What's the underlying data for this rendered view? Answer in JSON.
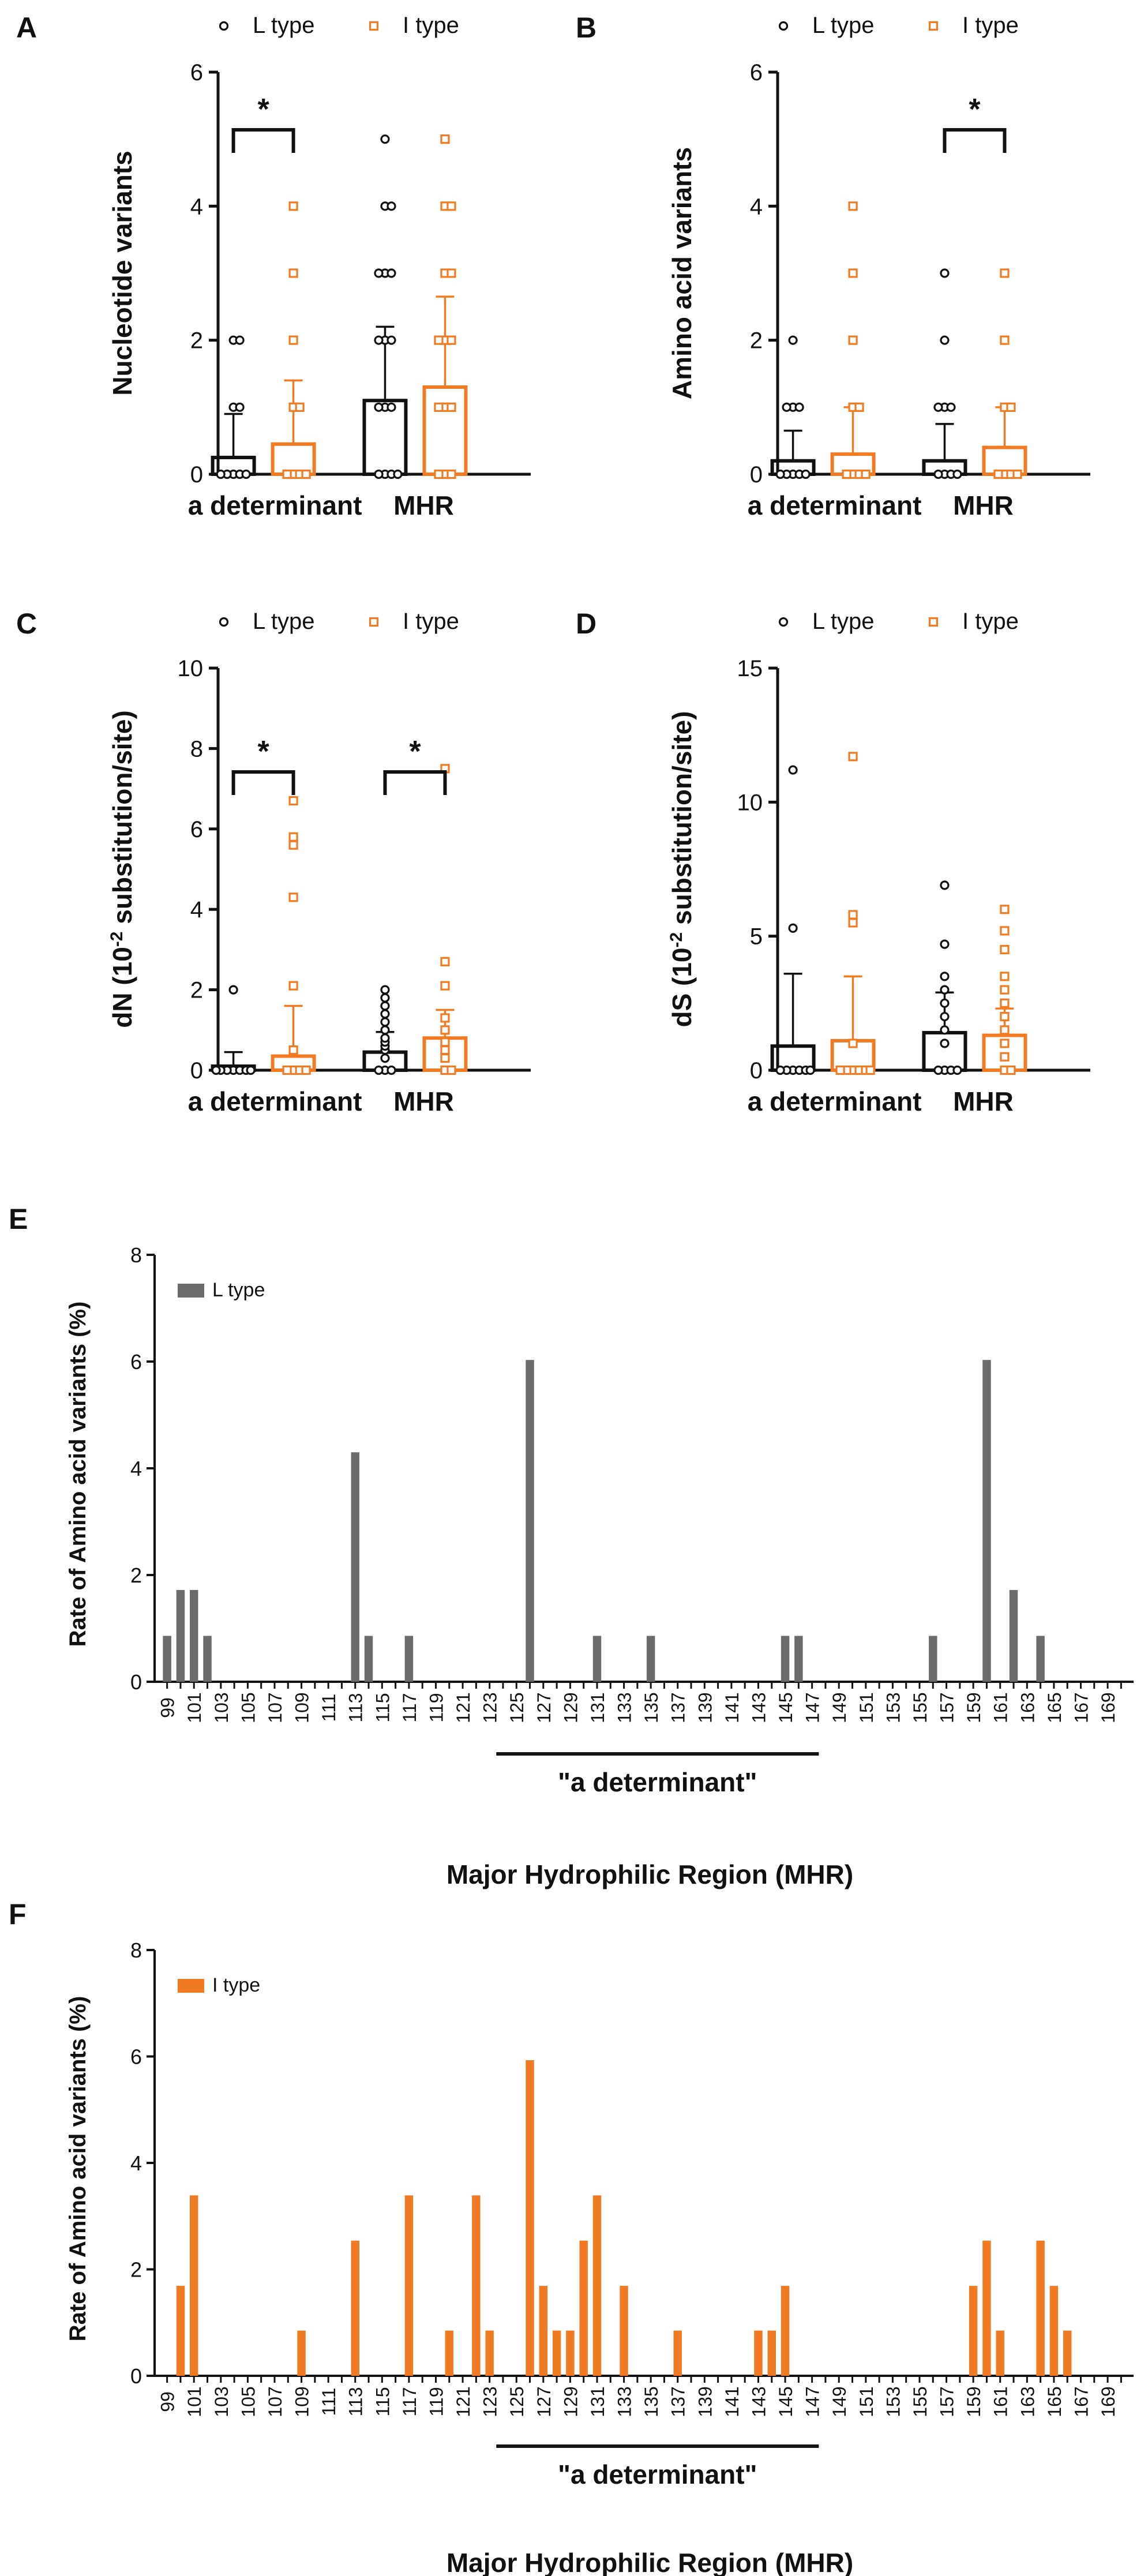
{
  "colors": {
    "l_type": "#111111",
    "i_type": "#f07b22",
    "l_type_bar_fill": "#6b6b6b",
    "axis": "#111111"
  },
  "legend": {
    "l_type": "L type",
    "i_type": "I type"
  },
  "chart_data": [
    {
      "panel": "A",
      "type": "bar",
      "ylabel": "Nucleotide variants",
      "ylim": [
        0,
        6
      ],
      "yticks": [
        0,
        2,
        4,
        6
      ],
      "categories": [
        "a determinant",
        "MHR"
      ],
      "series": [
        {
          "name": "L type",
          "means": [
            0.25,
            1.1
          ],
          "sd_upper": [
            0.9,
            2.2
          ],
          "points": [
            [
              0,
              0,
              0,
              0,
              0,
              1,
              1,
              2,
              2
            ],
            [
              0,
              0,
              0,
              0,
              1,
              1,
              1,
              2,
              2,
              2,
              3,
              3,
              3,
              4,
              4,
              5
            ]
          ]
        },
        {
          "name": "I type",
          "means": [
            0.45,
            1.3
          ],
          "sd_upper": [
            1.4,
            2.65
          ],
          "points": [
            [
              0,
              0,
              0,
              0,
              1,
              1,
              2,
              3,
              4
            ],
            [
              0,
              0,
              0,
              1,
              1,
              1,
              2,
              2,
              2,
              3,
              3,
              4,
              4,
              5
            ]
          ]
        }
      ],
      "significance": [
        {
          "category": "a determinant",
          "label": "*"
        }
      ]
    },
    {
      "panel": "B",
      "type": "bar",
      "ylabel": "Amino acid variants",
      "ylim": [
        0,
        6
      ],
      "yticks": [
        0,
        2,
        4,
        6
      ],
      "categories": [
        "a determinant",
        "MHR"
      ],
      "series": [
        {
          "name": "L type",
          "means": [
            0.2,
            0.2
          ],
          "sd_upper": [
            0.65,
            0.75
          ],
          "points": [
            [
              0,
              0,
              0,
              0,
              0,
              1,
              1,
              1,
              2
            ],
            [
              0,
              0,
              0,
              0,
              1,
              1,
              1,
              2,
              3
            ]
          ]
        },
        {
          "name": "I type",
          "means": [
            0.3,
            0.4
          ],
          "sd_upper": [
            1.0,
            1.0
          ],
          "points": [
            [
              0,
              0,
              0,
              0,
              1,
              1,
              2,
              3,
              4
            ],
            [
              0,
              0,
              0,
              0,
              1,
              1,
              2,
              3
            ]
          ]
        }
      ],
      "significance": [
        {
          "category": "MHR",
          "label": "*"
        }
      ]
    },
    {
      "panel": "C",
      "type": "bar",
      "ylabel": "dN (10-2 substitution/site)",
      "ylabel_base": "dN (10",
      "ylabel_sup": "-2",
      "ylabel_rest": " substitution/site)",
      "ylim": [
        0,
        10
      ],
      "yticks": [
        0,
        2,
        4,
        6,
        8,
        10
      ],
      "categories": [
        "a determinant",
        "MHR"
      ],
      "series": [
        {
          "name": "L type",
          "means": [
            0.1,
            0.45
          ],
          "sd_upper": [
            0.45,
            0.95
          ],
          "points": [
            [
              0,
              0,
              0,
              0,
              0,
              0,
              0,
              2.0
            ],
            [
              0,
              0,
              0,
              0.3,
              0.5,
              0.6,
              0.7,
              0.8,
              1.0,
              1.2,
              1.4,
              1.6,
              1.8,
              2.0
            ]
          ]
        },
        {
          "name": "I type",
          "means": [
            0.35,
            0.8
          ],
          "sd_upper": [
            1.6,
            1.5
          ],
          "points": [
            [
              0,
              0,
              0,
              0,
              0.5,
              2.1,
              4.3,
              5.6,
              5.8,
              6.7
            ],
            [
              0,
              0,
              0.3,
              0.5,
              0.7,
              1.0,
              1.3,
              2.1,
              2.7,
              7.5
            ]
          ]
        }
      ],
      "significance": [
        {
          "category": "a determinant",
          "label": "*"
        },
        {
          "category": "MHR",
          "label": "*"
        }
      ]
    },
    {
      "panel": "D",
      "type": "bar",
      "ylabel": "dS (10-2 substitution/site)",
      "ylabel_base": "dS (10",
      "ylabel_sup": "-2",
      "ylabel_rest": " substitution/site)",
      "ylim": [
        0,
        15
      ],
      "yticks": [
        0,
        5,
        10,
        15
      ],
      "categories": [
        "a determinant",
        "MHR"
      ],
      "series": [
        {
          "name": "L type",
          "means": [
            0.9,
            1.4
          ],
          "sd_upper": [
            3.6,
            2.9
          ],
          "points": [
            [
              0,
              0,
              0,
              0,
              0,
              0,
              5.3,
              11.2
            ],
            [
              0,
              0,
              0,
              0,
              1.0,
              1.5,
              2.0,
              2.5,
              3.0,
              3.5,
              4.7,
              6.9
            ]
          ]
        },
        {
          "name": "I type",
          "means": [
            1.1,
            1.3
          ],
          "sd_upper": [
            3.5,
            2.3
          ],
          "points": [
            [
              0,
              0,
              0,
              0,
              0,
              0,
              1.0,
              5.5,
              5.8,
              11.7
            ],
            [
              0,
              0,
              0.5,
              1.0,
              1.5,
              2.0,
              2.5,
              3.0,
              3.5,
              4.5,
              5.2,
              6.0
            ]
          ]
        }
      ],
      "significance": []
    },
    {
      "panel": "E",
      "type": "bar",
      "series_name": "L type",
      "ylabel": "Rate of Amino acid variants (%)",
      "xlabel": "Major Hydrophilic Region (MHR)",
      "ylim": [
        0,
        8
      ],
      "yticks": [
        0,
        2,
        4,
        6,
        8
      ],
      "x_start": 99,
      "x_end": 170,
      "xtick_labels": [
        99,
        101,
        103,
        105,
        107,
        109,
        111,
        113,
        115,
        117,
        119,
        121,
        123,
        125,
        127,
        129,
        131,
        133,
        135,
        137,
        139,
        141,
        143,
        145,
        147,
        149,
        151,
        153,
        155,
        157,
        159,
        161,
        163,
        165,
        167,
        169
      ],
      "bars": [
        {
          "x": 99,
          "v": 0.86
        },
        {
          "x": 100,
          "v": 1.72
        },
        {
          "x": 101,
          "v": 1.72
        },
        {
          "x": 102,
          "v": 0.86
        },
        {
          "x": 113,
          "v": 4.3
        },
        {
          "x": 114,
          "v": 0.86
        },
        {
          "x": 117,
          "v": 0.86
        },
        {
          "x": 126,
          "v": 6.03
        },
        {
          "x": 131,
          "v": 0.86
        },
        {
          "x": 135,
          "v": 0.86
        },
        {
          "x": 145,
          "v": 0.86
        },
        {
          "x": 146,
          "v": 0.86
        },
        {
          "x": 156,
          "v": 0.86
        },
        {
          "x": 160,
          "v": 6.03
        },
        {
          "x": 162,
          "v": 1.72
        },
        {
          "x": 164,
          "v": 0.86
        }
      ],
      "region_label": "\"a determinant\"",
      "region_range": [
        124,
        147
      ]
    },
    {
      "panel": "F",
      "type": "bar",
      "series_name": "I type",
      "ylabel": "Rate of Amino acid variants (%)",
      "xlabel": "Major Hydrophilic Region (MHR)",
      "ylim": [
        0,
        8
      ],
      "yticks": [
        0,
        2,
        4,
        6,
        8
      ],
      "x_start": 99,
      "x_end": 170,
      "xtick_labels": [
        99,
        101,
        103,
        105,
        107,
        109,
        111,
        113,
        115,
        117,
        119,
        121,
        123,
        125,
        127,
        129,
        131,
        133,
        135,
        137,
        139,
        141,
        143,
        145,
        147,
        149,
        151,
        153,
        155,
        157,
        159,
        161,
        163,
        165,
        167,
        169
      ],
      "bars": [
        {
          "x": 100,
          "v": 1.69
        },
        {
          "x": 101,
          "v": 3.39
        },
        {
          "x": 109,
          "v": 0.85
        },
        {
          "x": 113,
          "v": 2.54
        },
        {
          "x": 117,
          "v": 3.39
        },
        {
          "x": 120,
          "v": 0.85
        },
        {
          "x": 122,
          "v": 3.39
        },
        {
          "x": 123,
          "v": 0.85
        },
        {
          "x": 126,
          "v": 5.93
        },
        {
          "x": 127,
          "v": 1.69
        },
        {
          "x": 128,
          "v": 0.85
        },
        {
          "x": 129,
          "v": 0.85
        },
        {
          "x": 130,
          "v": 2.54
        },
        {
          "x": 131,
          "v": 3.39
        },
        {
          "x": 133,
          "v": 1.69
        },
        {
          "x": 137,
          "v": 0.85
        },
        {
          "x": 143,
          "v": 0.85
        },
        {
          "x": 144,
          "v": 0.85
        },
        {
          "x": 145,
          "v": 1.69
        },
        {
          "x": 159,
          "v": 1.69
        },
        {
          "x": 160,
          "v": 2.54
        },
        {
          "x": 161,
          "v": 0.85
        },
        {
          "x": 164,
          "v": 2.54
        },
        {
          "x": 165,
          "v": 1.69
        },
        {
          "x": 166,
          "v": 0.85
        }
      ],
      "region_label": "\"a determinant\"",
      "region_range": [
        124,
        147
      ]
    }
  ]
}
